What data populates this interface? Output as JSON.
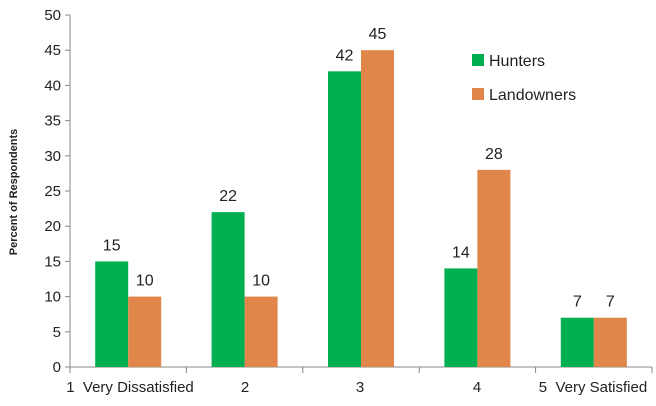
{
  "chart_data": {
    "type": "bar",
    "title": "",
    "xlabel": "",
    "ylabel": "Percent of Respondents",
    "categories": [
      "1  Very Dissatisfied",
      "2",
      "3",
      "4",
      "5  Very Satisfied"
    ],
    "series": [
      {
        "name": "Hunters",
        "color": "#00b050",
        "values": [
          15,
          22,
          42,
          14,
          7
        ]
      },
      {
        "name": "Landowners",
        "color": "#e0864a",
        "values": [
          10,
          10,
          45,
          28,
          7
        ]
      }
    ],
    "ylim": [
      0,
      50
    ],
    "yticks": [
      0,
      5,
      10,
      15,
      20,
      25,
      30,
      35,
      40,
      45,
      50
    ],
    "grid": false,
    "legend": "top-right"
  }
}
